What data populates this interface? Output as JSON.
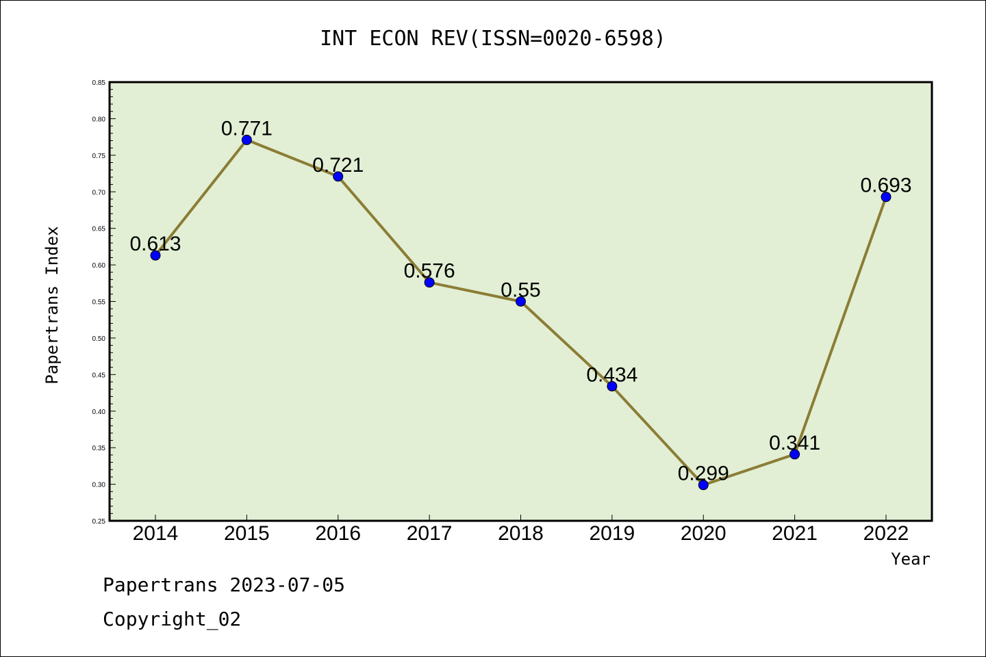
{
  "chart_data": {
    "type": "line",
    "title": "INT ECON REV(ISSN=0020-6598)",
    "xlabel": "Year",
    "ylabel": "Papertrans Index",
    "categories": [
      "2014",
      "2015",
      "2016",
      "2017",
      "2018",
      "2019",
      "2020",
      "2021",
      "2022"
    ],
    "values": [
      0.613,
      0.771,
      0.721,
      0.576,
      0.55,
      0.434,
      0.299,
      0.341,
      0.693
    ],
    "data_labels": [
      "0.613",
      "0.771",
      "0.721",
      "0.576",
      "0.55",
      "0.434",
      "0.299",
      "0.341",
      "0.693"
    ],
    "ylim": [
      0.25,
      0.85
    ],
    "yticks": [
      "0.25",
      "0.30",
      "0.35",
      "0.40",
      "0.45",
      "0.50",
      "0.55",
      "0.60",
      "0.65",
      "0.70",
      "0.75",
      "0.80",
      "0.85"
    ],
    "grid": false,
    "colors": {
      "plot_background": "#e2efd5",
      "line": "#8b7d35",
      "marker": "#0000ff"
    }
  },
  "footer": {
    "line1": "Papertrans 2023-07-05",
    "line2": "Copyright_02"
  }
}
